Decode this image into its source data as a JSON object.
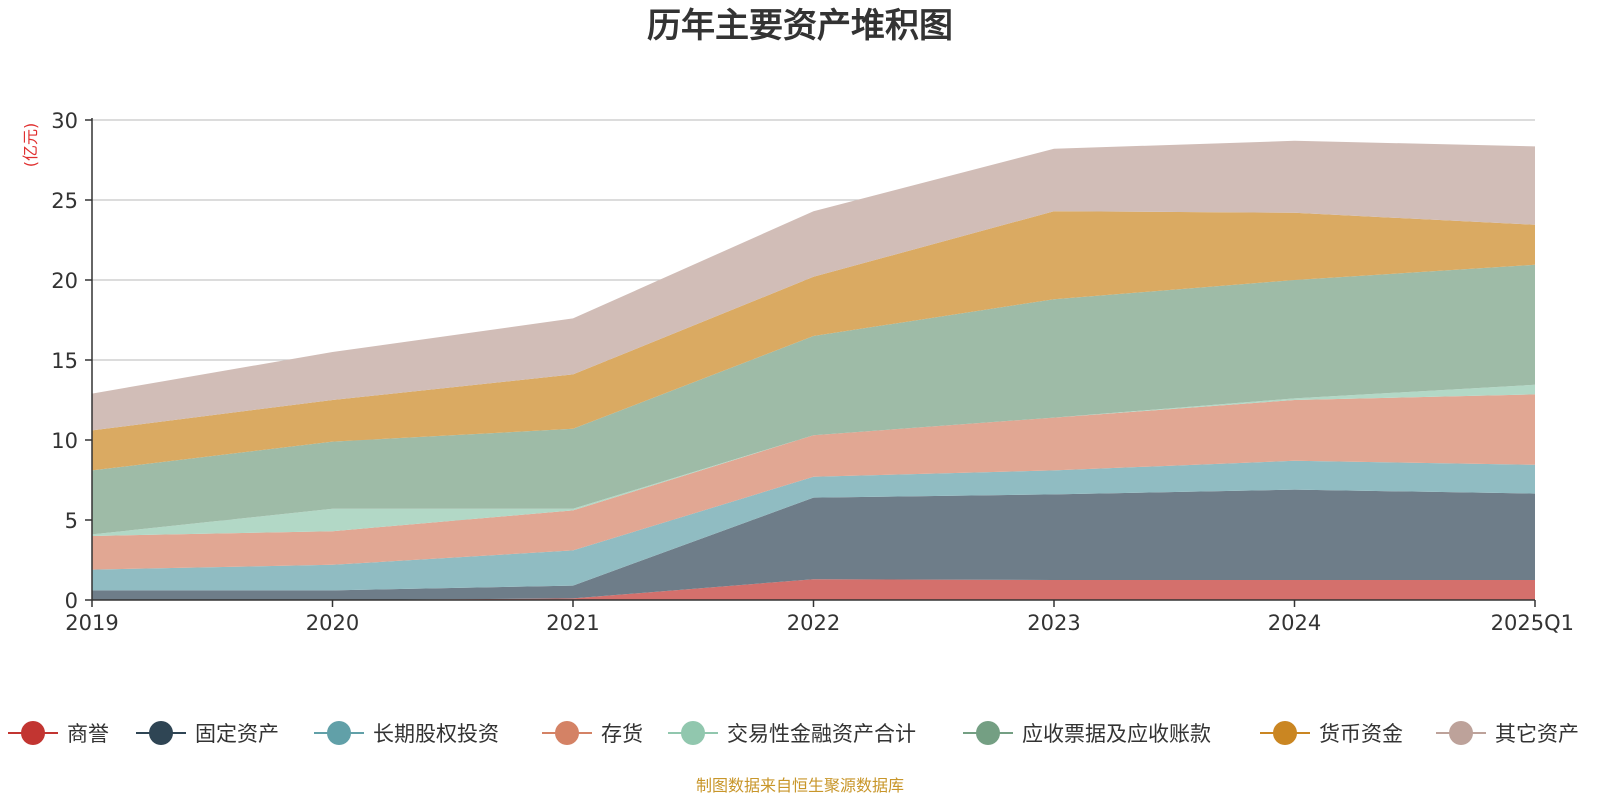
{
  "chart_data": {
    "type": "area",
    "title": "历年主要资产堆积图",
    "ylabel": "(亿元)",
    "xlabel": "",
    "categories": [
      "2019",
      "2020",
      "2021",
      "2022",
      "2023",
      "2024",
      "2025Q1"
    ],
    "ylim": [
      0,
      30
    ],
    "yticks": [
      0,
      5,
      10,
      15,
      20,
      25,
      30
    ],
    "stacked": true,
    "grid": true,
    "legend_position": "bottom",
    "series": [
      {
        "name": "商誉",
        "color": "#c23531",
        "fill": "#d4706c",
        "values": [
          0.0,
          0.0,
          0.1,
          1.3,
          1.25,
          1.25,
          1.25
        ]
      },
      {
        "name": "固定资产",
        "color": "#2f4554",
        "fill": "#6e7d89",
        "values": [
          0.6,
          0.6,
          0.8,
          5.1,
          5.35,
          5.65,
          5.4
        ]
      },
      {
        "name": "长期股权投资",
        "color": "#61a0a8",
        "fill": "#90bcc2",
        "values": [
          1.3,
          1.6,
          2.2,
          1.3,
          1.5,
          1.8,
          1.8
        ]
      },
      {
        "name": "存货",
        "color": "#d48265",
        "fill": "#e1a793",
        "values": [
          2.1,
          2.1,
          2.5,
          2.6,
          3.3,
          3.8,
          4.4
        ]
      },
      {
        "name": "交易性金融资产合计",
        "color": "#91c7ae",
        "fill": "#b2d8c6",
        "values": [
          0.1,
          1.4,
          0.1,
          0.0,
          0.0,
          0.1,
          0.6
        ]
      },
      {
        "name": "应收票据及应收账款",
        "color": "#749f83",
        "fill": "#9ebba7",
        "values": [
          4.0,
          4.2,
          5.0,
          6.2,
          7.4,
          7.4,
          7.5
        ]
      },
      {
        "name": "货币资金",
        "color": "#ca8622",
        "fill": "#daaa62",
        "values": [
          2.5,
          2.6,
          3.4,
          3.7,
          5.5,
          4.2,
          2.5
        ]
      },
      {
        "name": "其它资产",
        "color": "#bda29a",
        "fill": "#d1bdb7",
        "values": [
          2.3,
          3.0,
          3.5,
          4.1,
          3.9,
          4.5,
          4.9
        ]
      }
    ]
  },
  "source_note": "制图数据来自恒生聚源数据库"
}
